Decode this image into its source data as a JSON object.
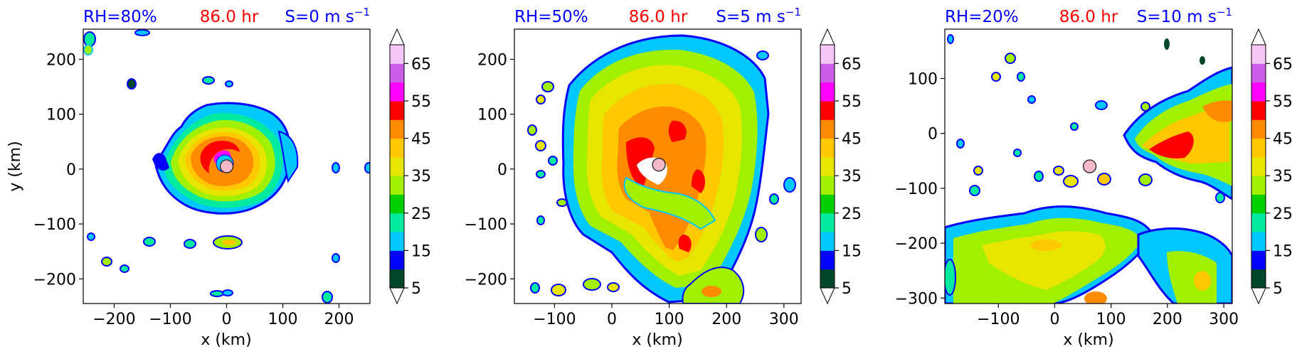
{
  "colors": {
    "title_blue": "#0000ff",
    "title_red": "#ff0000",
    "cb_colors": [
      "#00462a",
      "#0000ff",
      "#00c8ff",
      "#00eba0",
      "#00d000",
      "#a0f000",
      "#e6e600",
      "#ffc800",
      "#ff8c00",
      "#ff0000",
      "#ff00ff",
      "#cc5de8",
      "#f6c6f6"
    ],
    "cb_over": "#ffffff",
    "cb_under": "#ffffff",
    "storm_marker": "#f4b8c8"
  },
  "chart_data": [
    {
      "type": "heatmap",
      "title_left": "RH=80%",
      "title_center": "86.0 hr",
      "title_right": "S=0 m s",
      "title_right_sup": "−1",
      "xlabel": "x (km)",
      "ylabel": "y (km)",
      "xlim": [
        -255,
        255
      ],
      "ylim": [
        -245,
        255
      ],
      "xticks": [
        -200,
        -100,
        0,
        100,
        200
      ],
      "xtick_labels": [
        "−200",
        "−100",
        "0",
        "100",
        "200"
      ],
      "yticks": [
        -200,
        -100,
        0,
        100,
        200
      ],
      "ytick_labels": [
        "−200",
        "−100",
        "0",
        "100",
        "200"
      ],
      "storm_center": [
        0,
        5
      ],
      "colorbar": {
        "levels": [
          5,
          10,
          15,
          20,
          25,
          30,
          35,
          40,
          45,
          50,
          55,
          60,
          65,
          70
        ],
        "tick_values": [
          5,
          15,
          25,
          35,
          45,
          55,
          65
        ],
        "tick_labels": [
          "5",
          "15",
          "25",
          "35",
          "45",
          "55",
          "65"
        ],
        "extend": "both"
      }
    },
    {
      "type": "heatmap",
      "title_left": "RH=50%",
      "title_center": "86.0 hr",
      "title_right": "S=5 m s",
      "title_right_sup": "−1",
      "xlabel": "x (km)",
      "ylabel": "",
      "xlim": [
        -170,
        330
      ],
      "ylim": [
        -245,
        255
      ],
      "xticks": [
        -100,
        0,
        100,
        200,
        300
      ],
      "xtick_labels": [
        "−100",
        "0",
        "100",
        "200",
        "300"
      ],
      "yticks": [
        -200,
        -100,
        0,
        100,
        200
      ],
      "ytick_labels": [
        "−200",
        "−100",
        "0",
        "100",
        "200"
      ],
      "storm_center": [
        82,
        8
      ],
      "colorbar": {
        "levels": [
          5,
          10,
          15,
          20,
          25,
          30,
          35,
          40,
          45,
          50,
          55,
          60,
          65,
          70
        ],
        "tick_values": [
          5,
          15,
          25,
          35,
          45,
          55,
          65
        ],
        "tick_labels": [
          "5",
          "15",
          "25",
          "35",
          "45",
          "55",
          "65"
        ],
        "extend": "both"
      }
    },
    {
      "type": "heatmap",
      "title_left": "RH=20%",
      "title_center": "86.0 hr",
      "title_right": "S=10 m s",
      "title_right_sup": "−1",
      "xlabel": "x (km)",
      "ylabel": "",
      "xlim": [
        -195,
        315
      ],
      "ylim": [
        -310,
        190
      ],
      "xticks": [
        -100,
        0,
        100,
        200,
        300
      ],
      "xtick_labels": [
        "−100",
        "0",
        "100",
        "200",
        "300"
      ],
      "yticks": [
        -300,
        -200,
        -100,
        0,
        100
      ],
      "ytick_labels": [
        "−300",
        "−200",
        "−100",
        "0",
        "100"
      ],
      "storm_center": [
        62,
        -60
      ],
      "colorbar": {
        "levels": [
          5,
          10,
          15,
          20,
          25,
          30,
          35,
          40,
          45,
          50,
          55,
          60,
          65,
          70
        ],
        "tick_values": [
          5,
          15,
          25,
          35,
          45,
          55,
          65
        ],
        "tick_labels": [
          "5",
          "15",
          "25",
          "35",
          "45",
          "55",
          "65"
        ],
        "extend": "both"
      }
    }
  ]
}
